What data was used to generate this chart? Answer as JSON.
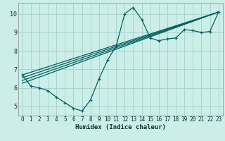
{
  "xlabel": "Humidex (Indice chaleur)",
  "bg_color": "#cceee8",
  "grid_color": "#aad4ce",
  "line_color": "#006060",
  "xlim": [
    -0.5,
    23.5
  ],
  "ylim": [
    4.5,
    10.6
  ],
  "xticks": [
    0,
    1,
    2,
    3,
    4,
    5,
    6,
    7,
    8,
    9,
    10,
    11,
    12,
    13,
    14,
    15,
    16,
    17,
    18,
    19,
    20,
    21,
    22,
    23
  ],
  "yticks": [
    5,
    6,
    7,
    8,
    9,
    10
  ],
  "line1_x": [
    0,
    1,
    2,
    3,
    4,
    5,
    6,
    7,
    8,
    9,
    10,
    11,
    12,
    13,
    14,
    15,
    16,
    17,
    18,
    19,
    20,
    21,
    22,
    23
  ],
  "line1_y": [
    6.7,
    6.1,
    6.0,
    5.85,
    5.5,
    5.2,
    4.9,
    4.75,
    5.35,
    6.5,
    7.5,
    8.25,
    10.0,
    10.35,
    9.7,
    8.7,
    8.55,
    8.65,
    8.7,
    9.15,
    9.1,
    9.0,
    9.05,
    10.1
  ],
  "trend1_x": [
    0,
    23
  ],
  "trend1_y": [
    6.7,
    10.1
  ],
  "trend2_x": [
    0,
    23
  ],
  "trend2_y": [
    6.55,
    10.1
  ],
  "trend3_x": [
    0,
    23
  ],
  "trend3_y": [
    6.4,
    10.1
  ],
  "trend4_x": [
    0,
    23
  ],
  "trend4_y": [
    6.25,
    10.1
  ]
}
